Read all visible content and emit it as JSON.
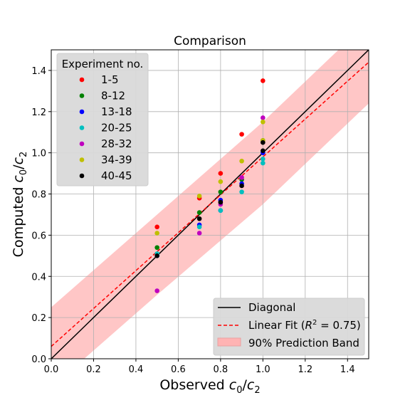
{
  "chart_data": {
    "type": "scatter",
    "title": "Comparison",
    "xlabel": {
      "main": "Observed ",
      "var": "c",
      "sub0": "0",
      "slash": "/",
      "var2": "c",
      "sub2": "2"
    },
    "ylabel": {
      "main": "Computed ",
      "var": "c",
      "sub0": "0",
      "slash": "/",
      "var2": "c",
      "sub2": "2"
    },
    "xlim": [
      0.0,
      1.5
    ],
    "ylim": [
      0.0,
      1.5
    ],
    "x_ticks": [
      "0.0",
      "0.2",
      "0.4",
      "0.6",
      "0.8",
      "1.0",
      "1.2",
      "1.4"
    ],
    "y_ticks": [
      "0.0",
      "0.2",
      "0.4",
      "0.6",
      "0.8",
      "1.0",
      "1.2",
      "1.4"
    ],
    "grid": true,
    "scatter_legend": {
      "title": "Experiment no.",
      "placement": "top-left"
    },
    "series": [
      {
        "name": "1-5",
        "color": "#ff0000",
        "points": [
          [
            0.5,
            0.64
          ],
          [
            0.7,
            0.78
          ],
          [
            0.8,
            0.9
          ],
          [
            0.9,
            1.09
          ],
          [
            1.0,
            1.35
          ]
        ]
      },
      {
        "name": "8-12",
        "color": "#008000",
        "points": [
          [
            0.5,
            0.54
          ],
          [
            0.7,
            0.71
          ],
          [
            0.8,
            0.81
          ],
          [
            0.9,
            0.87
          ],
          [
            1.0,
            1.06
          ]
        ]
      },
      {
        "name": "13-18",
        "color": "#0000ff",
        "points": [
          [
            0.5,
            0.5
          ],
          [
            0.7,
            0.65
          ],
          [
            0.8,
            0.72
          ],
          [
            0.8,
            0.77
          ],
          [
            0.9,
            0.85
          ],
          [
            1.0,
            1.0
          ]
        ]
      },
      {
        "name": "20-25",
        "color": "#00bfbf",
        "points": [
          [
            0.5,
            0.51
          ],
          [
            0.7,
            0.64
          ],
          [
            0.8,
            0.72
          ],
          [
            0.9,
            0.81
          ],
          [
            1.0,
            0.95
          ],
          [
            1.0,
            0.97
          ]
        ]
      },
      {
        "name": "28-32",
        "color": "#bf00bf",
        "points": [
          [
            0.5,
            0.33
          ],
          [
            0.7,
            0.61
          ],
          [
            0.8,
            0.75
          ],
          [
            0.9,
            0.88
          ],
          [
            1.0,
            1.17
          ]
        ]
      },
      {
        "name": "34-39",
        "color": "#bfbf00",
        "points": [
          [
            0.5,
            0.61
          ],
          [
            0.7,
            0.79
          ],
          [
            0.8,
            0.86
          ],
          [
            0.9,
            0.96
          ],
          [
            1.0,
            1.15
          ],
          [
            1.0,
            1.06
          ]
        ]
      },
      {
        "name": "40-45",
        "color": "#000000",
        "points": [
          [
            0.5,
            0.5
          ],
          [
            0.7,
            0.68
          ],
          [
            0.8,
            0.76
          ],
          [
            0.9,
            0.84
          ],
          [
            1.0,
            1.05
          ],
          [
            1.0,
            1.01
          ]
        ]
      }
    ],
    "lines": {
      "diagonal": {
        "label": "Diagonal",
        "color": "#000000",
        "style": "solid",
        "points": [
          [
            0.0,
            0.0
          ],
          [
            1.5,
            1.5
          ]
        ]
      },
      "fit": {
        "label_prefix": "Linear Fit (",
        "label_r2": "R",
        "label_sup": "2",
        "label_suffix": " = 0.75)",
        "color": "#ff0000",
        "style": "dashed",
        "points": [
          [
            0.0,
            0.06
          ],
          [
            1.5,
            1.44
          ]
        ]
      },
      "band": {
        "label": "90% Prediction Band",
        "color": "#ffb3b3",
        "upper": [
          [
            0.0,
            0.25
          ],
          [
            0.5,
            0.7
          ],
          [
            1.0,
            1.15
          ],
          [
            1.5,
            1.64
          ]
        ],
        "lower": [
          [
            0.0,
            -0.14
          ],
          [
            0.5,
            0.31
          ],
          [
            1.0,
            0.75
          ],
          [
            1.5,
            1.24
          ]
        ]
      }
    },
    "line_legend": {
      "placement": "bottom-right"
    }
  }
}
